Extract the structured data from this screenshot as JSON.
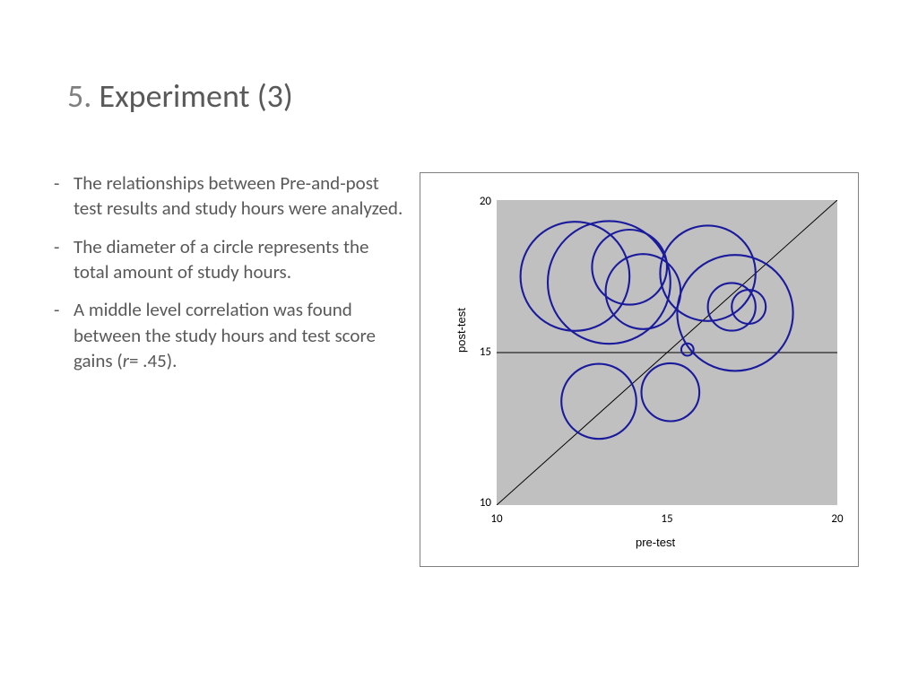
{
  "title": {
    "number": "5.",
    "text": "Experiment (3)"
  },
  "bullets": [
    "The relationships between Pre-and-post test results and study hours were analyzed.",
    "The diameter of a circle represents the total amount of study hours.",
    "A middle level correlation was found between the study hours and test score gains (r= .45)."
  ],
  "chart": {
    "type": "bubble",
    "xlabel": "pre-test",
    "ylabel": "post-test",
    "xlim": [
      10,
      20
    ],
    "ylim": [
      10,
      20
    ],
    "xticks": [
      10,
      15,
      20
    ],
    "yticks": [
      10,
      15,
      20
    ],
    "plot_bg": "#c0c0c0",
    "frame_bg": "#ffffff",
    "frame_border": "#7f7f7f",
    "circle_stroke": "#1a1a9d",
    "circle_stroke_width": 2.1,
    "circle_fill": "none",
    "diagonal_color": "#000000",
    "hline_color": "#000000",
    "hline_y": 15,
    "label_fontsize": 13,
    "tick_fontsize": 13,
    "bubbles": [
      {
        "x": 12.3,
        "y": 17.5,
        "r": 1.6
      },
      {
        "x": 13.3,
        "y": 17.3,
        "r": 1.8
      },
      {
        "x": 13.9,
        "y": 17.8,
        "r": 1.1
      },
      {
        "x": 14.3,
        "y": 17.0,
        "r": 1.1
      },
      {
        "x": 16.2,
        "y": 17.6,
        "r": 1.4
      },
      {
        "x": 17.0,
        "y": 16.3,
        "r": 1.7
      },
      {
        "x": 16.9,
        "y": 16.5,
        "r": 0.7
      },
      {
        "x": 17.4,
        "y": 16.5,
        "r": 0.5
      },
      {
        "x": 15.6,
        "y": 15.1,
        "r": 0.18
      },
      {
        "x": 13.0,
        "y": 13.4,
        "r": 1.1
      },
      {
        "x": 15.1,
        "y": 13.7,
        "r": 0.85
      }
    ]
  }
}
